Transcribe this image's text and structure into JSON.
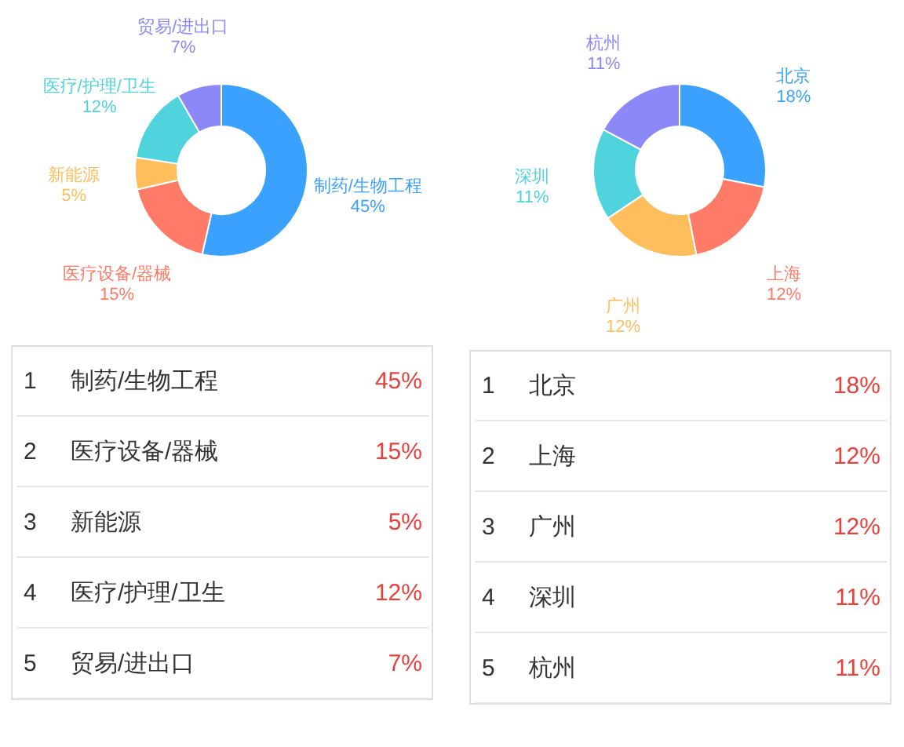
{
  "chart_data": [
    {
      "type": "donut",
      "categories": [
        "制药/生物工程",
        "医疗设备/器械",
        "新能源",
        "医疗/护理/卫生",
        "贸易/进出口"
      ],
      "values": [
        45,
        15,
        5,
        12,
        7
      ],
      "value_labels": [
        "45%",
        "15%",
        "5%",
        "12%",
        "7%"
      ],
      "colors": [
        "#3ba1ff",
        "#ff7b68",
        "#ffbe5c",
        "#4fd3dc",
        "#8c88f8"
      ],
      "legend": false,
      "annotations": [
        "1",
        "2",
        "3",
        "4",
        "5"
      ]
    },
    {
      "type": "donut",
      "categories": [
        "北京",
        "上海",
        "广州",
        "深圳",
        "杭州"
      ],
      "values": [
        18,
        12,
        12,
        11,
        11
      ],
      "value_labels": [
        "18%",
        "12%",
        "12%",
        "11%",
        "11%"
      ],
      "colors": [
        "#3ba1ff",
        "#ff7b68",
        "#ffbe5c",
        "#4fd3dc",
        "#8c88f8"
      ],
      "legend": false,
      "annotations": [
        "1",
        "2",
        "3",
        "4",
        "5"
      ]
    }
  ]
}
